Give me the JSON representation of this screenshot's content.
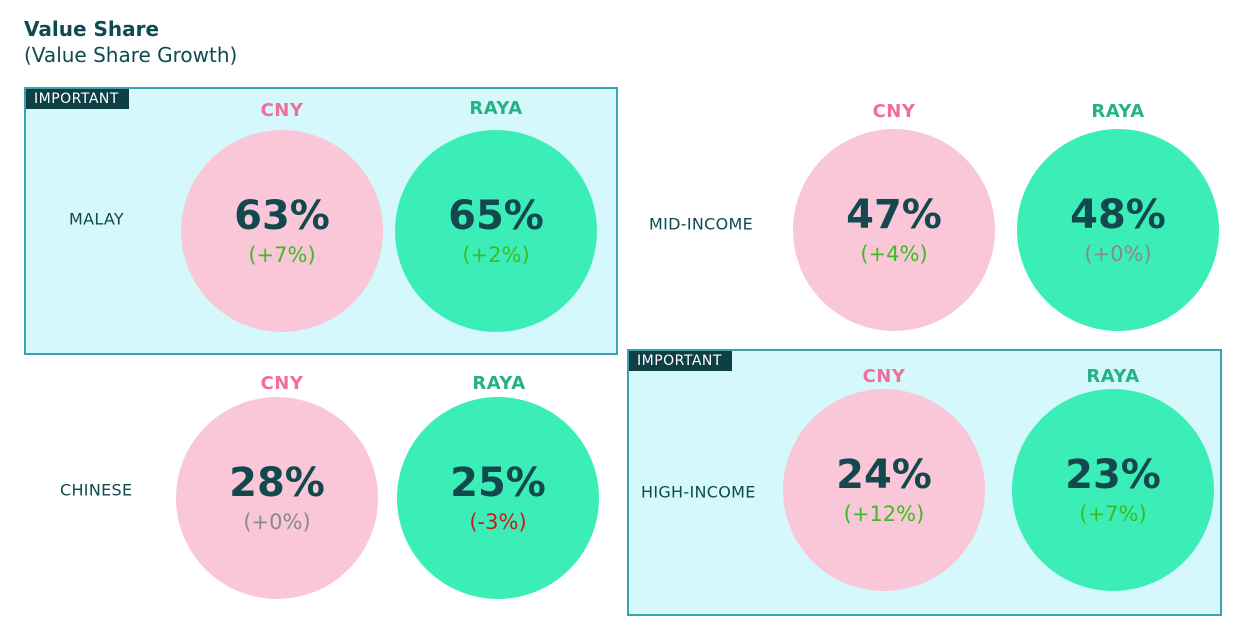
{
  "title": "Value Share",
  "subtitle": "(Value Share Growth)",
  "colors": {
    "cny_circle": "#f9c7d8",
    "raya_circle": "#3beeb7",
    "cny_header": "#ef6f9a",
    "raya_header": "#24b386",
    "growth_positive": "#3dbb22",
    "growth_neutral": "#8a8a8a",
    "growth_negative": "#d0191b"
  },
  "chart_data": {
    "type": "table",
    "title": "Value Share",
    "subtitle": "(Value Share Growth)",
    "columns": [
      "CNY",
      "RAYA"
    ],
    "segments": [
      {
        "segment": "MALAY",
        "important": true,
        "badge": "IMPORTANT",
        "values": [
          {
            "column": "CNY",
            "share": "63%",
            "growth": "(+7%)",
            "trend": "positive"
          },
          {
            "column": "RAYA",
            "share": "65%",
            "growth": "(+2%)",
            "trend": "positive"
          }
        ]
      },
      {
        "segment": "MID-INCOME",
        "important": false,
        "badge": "",
        "values": [
          {
            "column": "CNY",
            "share": "47%",
            "growth": "(+4%)",
            "trend": "positive"
          },
          {
            "column": "RAYA",
            "share": "48%",
            "growth": "(+0%)",
            "trend": "neutral"
          }
        ]
      },
      {
        "segment": "CHINESE",
        "important": false,
        "badge": "",
        "values": [
          {
            "column": "CNY",
            "share": "28%",
            "growth": "(+0%)",
            "trend": "neutral"
          },
          {
            "column": "RAYA",
            "share": "25%",
            "growth": "(-3%)",
            "trend": "negative"
          }
        ]
      },
      {
        "segment": "HIGH-INCOME",
        "important": true,
        "badge": "IMPORTANT",
        "values": [
          {
            "column": "CNY",
            "share": "24%",
            "growth": "(+12%)",
            "trend": "positive"
          },
          {
            "column": "RAYA",
            "share": "23%",
            "growth": "(+7%)",
            "trend": "positive"
          }
        ]
      }
    ]
  }
}
